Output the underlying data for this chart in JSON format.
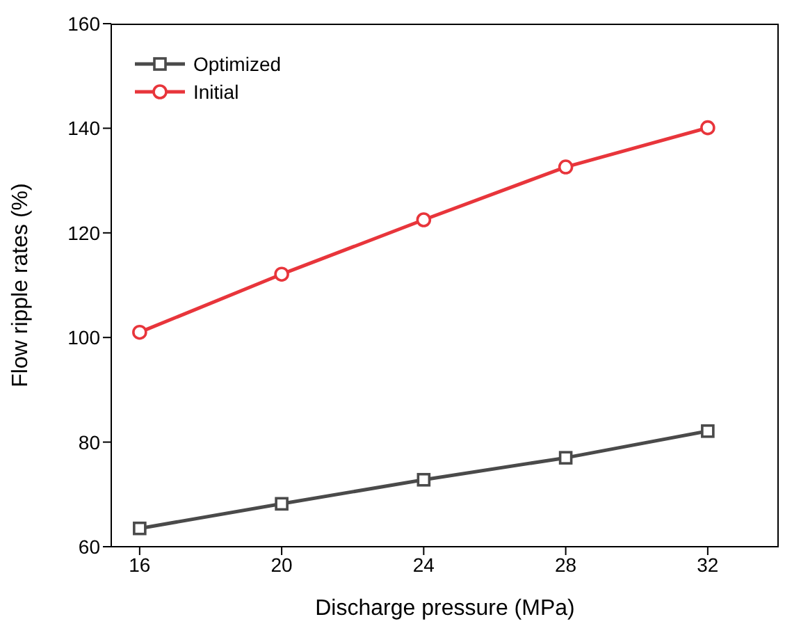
{
  "chart_data": {
    "type": "line",
    "xlabel": "Discharge pressure (MPa)",
    "ylabel": "Flow ripple rates (%)",
    "x": [
      16,
      20,
      24,
      28,
      32
    ],
    "series": [
      {
        "name": "Optimized",
        "color": "#4a4a4a",
        "marker": "square",
        "values": [
          63.5,
          68.2,
          72.8,
          77,
          82.1
        ]
      },
      {
        "name": "Initial",
        "color": "#e8353b",
        "marker": "circle",
        "values": [
          101,
          112.1,
          122.5,
          132.6,
          140.1
        ]
      }
    ],
    "xlim": [
      15.2,
      34
    ],
    "xticks": [
      16,
      20,
      24,
      28,
      32
    ],
    "ylim": [
      60,
      160
    ],
    "yticks": [
      60,
      80,
      100,
      120,
      140,
      160
    ],
    "grid": false,
    "legend": "top left",
    "line_style": "solid"
  }
}
